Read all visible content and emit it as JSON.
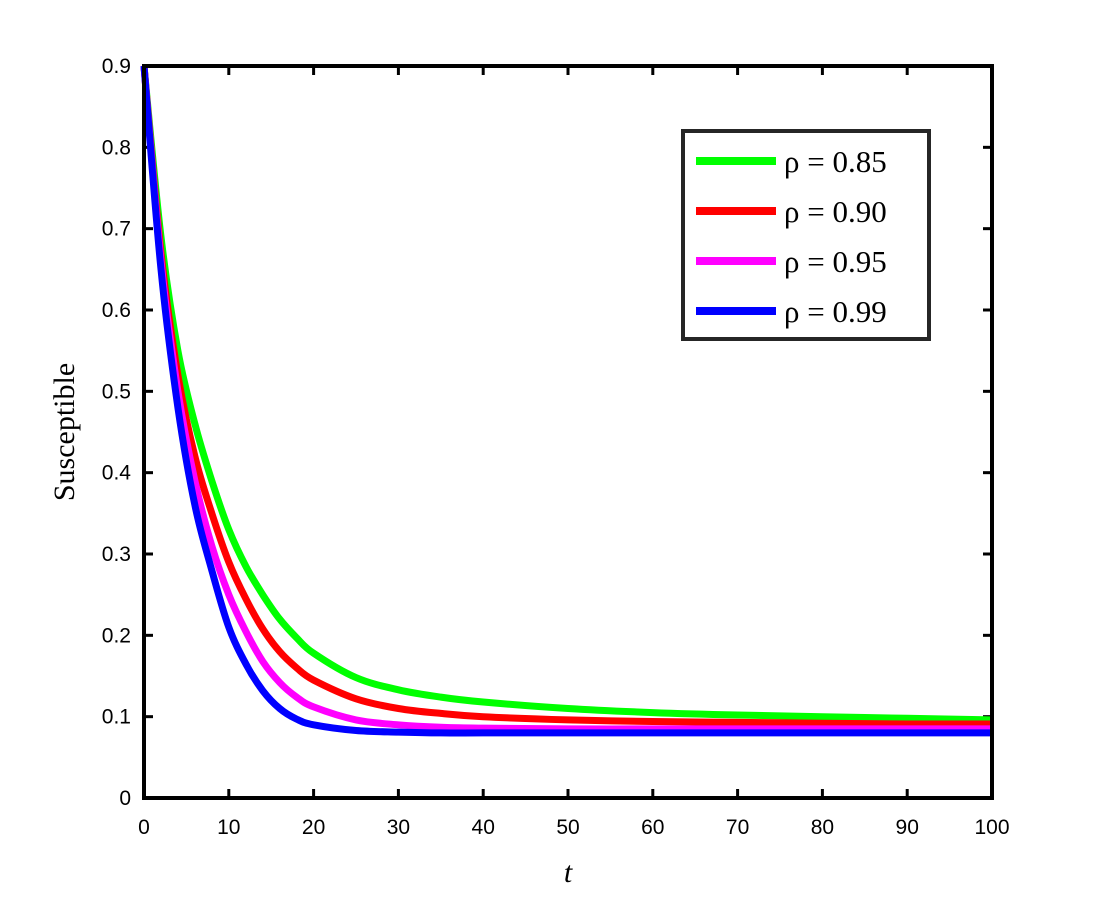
{
  "chart_data": {
    "type": "line",
    "title": "",
    "xlabel": "t",
    "ylabel": "Susceptible",
    "xlim": [
      0,
      100
    ],
    "ylim": [
      0,
      0.9
    ],
    "xticks": [
      "0",
      "10",
      "20",
      "30",
      "40",
      "50",
      "60",
      "70",
      "80",
      "90",
      "100"
    ],
    "yticks": [
      "0",
      "0.1",
      "0.2",
      "0.3",
      "0.4",
      "0.5",
      "0.6",
      "0.7",
      "0.8",
      "0.9"
    ],
    "grid": false,
    "legend_position": "top-right",
    "x": [
      0,
      2,
      4,
      6,
      8,
      10,
      12,
      14,
      16,
      18,
      20,
      25,
      30,
      35,
      40,
      50,
      60,
      70,
      80,
      90,
      100
    ],
    "series": [
      {
        "name": "ρ = 0.85",
        "color": "#00ff00",
        "values": [
          0.9,
          0.69,
          0.55,
          0.46,
          0.39,
          0.33,
          0.285,
          0.25,
          0.22,
          0.197,
          0.178,
          0.148,
          0.133,
          0.124,
          0.118,
          0.11,
          0.105,
          0.102,
          0.1,
          0.098,
          0.096
        ]
      },
      {
        "name": "ρ = 0.90",
        "color": "#ff0000",
        "values": [
          0.9,
          0.67,
          0.52,
          0.42,
          0.35,
          0.29,
          0.245,
          0.208,
          0.18,
          0.16,
          0.145,
          0.122,
          0.11,
          0.104,
          0.1,
          0.096,
          0.094,
          0.093,
          0.092,
          0.091,
          0.091
        ]
      },
      {
        "name": "ρ = 0.95",
        "color": "#ff00ff",
        "values": [
          0.9,
          0.66,
          0.5,
          0.39,
          0.31,
          0.25,
          0.205,
          0.168,
          0.142,
          0.124,
          0.112,
          0.096,
          0.09,
          0.087,
          0.086,
          0.085,
          0.085,
          0.085,
          0.085,
          0.085,
          0.085
        ]
      },
      {
        "name": "ρ = 0.99",
        "color": "#0000ff",
        "values": [
          0.9,
          0.65,
          0.48,
          0.36,
          0.28,
          0.21,
          0.165,
          0.132,
          0.11,
          0.097,
          0.09,
          0.083,
          0.081,
          0.08,
          0.08,
          0.08,
          0.08,
          0.08,
          0.08,
          0.08,
          0.08
        ]
      }
    ]
  }
}
